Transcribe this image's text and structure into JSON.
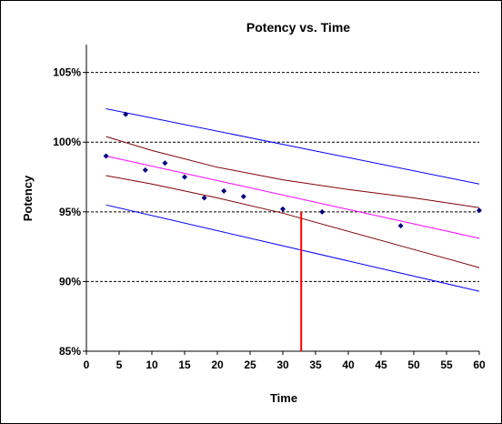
{
  "chart_data": {
    "type": "scatter",
    "title": "Potency vs. Time",
    "xlabel": "Time",
    "ylabel": "Potency",
    "xlim": [
      0,
      60
    ],
    "ylim": [
      85,
      107
    ],
    "x_ticks": [
      0,
      5,
      10,
      15,
      20,
      25,
      30,
      35,
      40,
      45,
      50,
      55,
      60
    ],
    "x_tick_labels": [
      "0",
      "5",
      "10",
      "15",
      "20",
      "25",
      "30",
      "35",
      "40",
      "45",
      "50",
      "55",
      "60"
    ],
    "y_ticks": [
      85,
      90,
      95,
      100,
      105
    ],
    "y_tick_labels": [
      "85%",
      "90%",
      "95%",
      "100%",
      "105%"
    ],
    "grid": {
      "y_major": true,
      "style": "dashed"
    },
    "series": [
      {
        "kind": "points",
        "color": "#000080",
        "points": [
          {
            "x": 3,
            "y": 99.0
          },
          {
            "x": 6,
            "y": 102.0
          },
          {
            "x": 9,
            "y": 98.0
          },
          {
            "x": 12,
            "y": 98.5
          },
          {
            "x": 15,
            "y": 97.5
          },
          {
            "x": 18,
            "y": 96.0
          },
          {
            "x": 21,
            "y": 96.5
          },
          {
            "x": 24,
            "y": 96.1
          },
          {
            "x": 30,
            "y": 95.2
          },
          {
            "x": 36,
            "y": 95.0
          },
          {
            "x": 48,
            "y": 94.0
          },
          {
            "x": 60,
            "y": 95.1
          }
        ]
      },
      {
        "kind": "line",
        "role": "regression",
        "color": "#ff00ff",
        "x": [
          3,
          60
        ],
        "y": [
          99.0,
          93.1
        ]
      },
      {
        "kind": "line",
        "role": "confidence-upper",
        "color": "#800000",
        "x": [
          3,
          10,
          20,
          30,
          40,
          50,
          60
        ],
        "y": [
          100.4,
          99.4,
          98.2,
          97.3,
          96.6,
          96.0,
          95.3
        ]
      },
      {
        "kind": "line",
        "role": "confidence-lower",
        "color": "#800000",
        "x": [
          3,
          10,
          20,
          30,
          40,
          50,
          60
        ],
        "y": [
          97.6,
          97.0,
          96.0,
          94.9,
          93.6,
          92.3,
          91.0
        ]
      },
      {
        "kind": "line",
        "role": "prediction-upper",
        "color": "#0000ff",
        "x": [
          3,
          60
        ],
        "y": [
          102.4,
          97.0
        ]
      },
      {
        "kind": "line",
        "role": "prediction-lower",
        "color": "#0000ff",
        "x": [
          3,
          60
        ],
        "y": [
          95.5,
          89.3
        ]
      },
      {
        "kind": "line",
        "role": "shelf-life-marker",
        "color": "#ff0000",
        "x": [
          32.8,
          32.8
        ],
        "y": [
          95.0,
          85.0
        ]
      }
    ],
    "colors": {
      "points": "#000080",
      "regression": "#ff00ff",
      "confidence": "#800000",
      "prediction": "#0000ff",
      "marker": "#ff0000",
      "grid": "#000000"
    }
  }
}
